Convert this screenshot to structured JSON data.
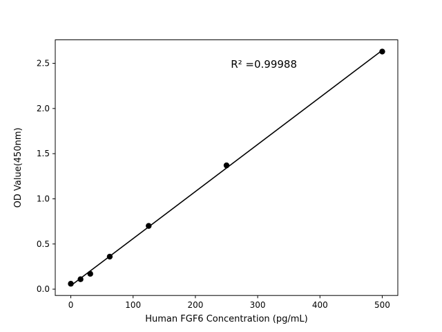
{
  "figure": {
    "background": "#ffffff",
    "foreground": "#000000"
  },
  "chart_data": {
    "type": "scatter",
    "title": "",
    "xlabel": "Human FGF6 Concentration (pg/mL)",
    "ylabel": "OD Value(450nm)",
    "annotation": {
      "text": "R² =0.99988",
      "x": 310,
      "y": 2.45
    },
    "x": [
      0,
      15.6,
      31.25,
      62.5,
      125,
      250,
      500
    ],
    "y": [
      0.06,
      0.11,
      0.17,
      0.36,
      0.7,
      1.37,
      2.63
    ],
    "xlim": [
      -25,
      525
    ],
    "ylim": [
      -0.07,
      2.76
    ],
    "xticks": [
      0,
      100,
      200,
      300,
      400,
      500
    ],
    "xtick_labels": [
      "0",
      "100",
      "200",
      "300",
      "400",
      "500"
    ],
    "yticks": [
      0.0,
      0.5,
      1.0,
      1.5,
      2.0,
      2.5
    ],
    "ytick_labels": [
      "0.0",
      "0.5",
      "1.0",
      "1.5",
      "2.0",
      "2.5"
    ],
    "grid": false,
    "fit_line": true,
    "marker_color": "#000000",
    "line_color": "#000000",
    "legend": null
  }
}
